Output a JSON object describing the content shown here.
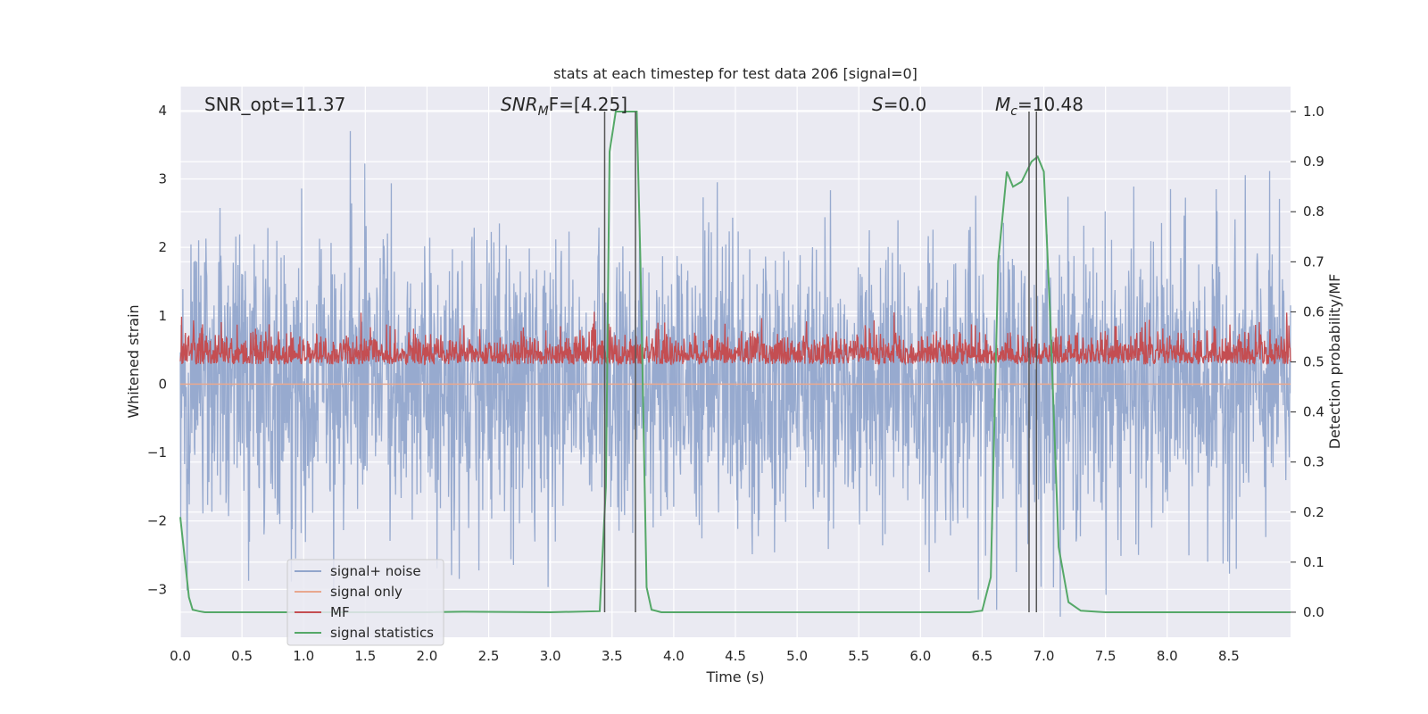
{
  "chart_data": {
    "type": "line",
    "title": "stats at each timestep for test data 206 [signal=0]",
    "xlabel": "Time (s)",
    "ylabel": "Whitened strain",
    "y2label": "Detection probability/MF",
    "xlim": [
      0.0,
      9.0
    ],
    "ylim": [
      -3.7,
      4.35
    ],
    "y2lim": [
      -0.05,
      1.05
    ],
    "xticks": [
      "0.0",
      "0.5",
      "1.0",
      "1.5",
      "2.0",
      "2.5",
      "3.0",
      "3.5",
      "4.0",
      "4.5",
      "5.0",
      "5.5",
      "6.0",
      "6.5",
      "7.0",
      "7.5",
      "8.0",
      "8.5"
    ],
    "yticks": [
      "−3",
      "−2",
      "−1",
      "0",
      "1",
      "2",
      "3",
      "4"
    ],
    "y2ticks": [
      "0.0",
      "0.1",
      "0.2",
      "0.3",
      "0.4",
      "0.5",
      "0.6",
      "0.7",
      "0.8",
      "0.9",
      "1.0"
    ],
    "grid": true,
    "legend_position": "lower-left",
    "annotations": {
      "snr_opt": "SNR_opt=11.37",
      "snr_mf_a": "SNR",
      "snr_mf_sub": "M",
      "snr_mf_b": "F=[4.25]",
      "s_a": "S",
      "s_b": "=0.0",
      "mc_a": "M",
      "mc_sub": "c",
      "mc_b": "=10.48"
    },
    "series": [
      {
        "name": "signal+ noise",
        "color": "#92a6cc",
        "description_range": [
          -3.4,
          4.0
        ]
      },
      {
        "name": "signal only",
        "color": "#e8a88f",
        "values_constant": 0.0
      },
      {
        "name": "MF",
        "color": "#c44e52",
        "axis": "right",
        "baseline": 0.5,
        "range": [
          0.45,
          0.6
        ]
      },
      {
        "name": "signal statistics",
        "color": "#55a868",
        "axis": "right",
        "x": [
          0.0,
          0.07,
          0.1,
          0.15,
          0.2,
          0.3,
          1.0,
          2.0,
          2.3,
          3.0,
          3.4,
          3.45,
          3.48,
          3.53,
          3.6,
          3.7,
          3.73,
          3.78,
          3.82,
          3.9,
          4.5,
          5.5,
          6.4,
          6.5,
          6.57,
          6.63,
          6.7,
          6.75,
          6.82,
          6.9,
          6.95,
          7.0,
          7.05,
          7.12,
          7.2,
          7.3,
          7.5,
          8.0,
          9.0
        ],
        "y": [
          0.19,
          0.03,
          0.005,
          0.002,
          0.0,
          0.0,
          0.0,
          0.0,
          0.001,
          0.0,
          0.002,
          0.25,
          0.92,
          1.0,
          1.0,
          1.0,
          0.7,
          0.05,
          0.005,
          0.0,
          0.0,
          0.0,
          0.0,
          0.003,
          0.07,
          0.7,
          0.88,
          0.85,
          0.86,
          0.9,
          0.91,
          0.88,
          0.6,
          0.13,
          0.02,
          0.003,
          0.0,
          0.0,
          0.0
        ]
      }
    ],
    "vertical_lines": [
      3.44,
      3.69,
      6.88,
      6.94
    ]
  }
}
